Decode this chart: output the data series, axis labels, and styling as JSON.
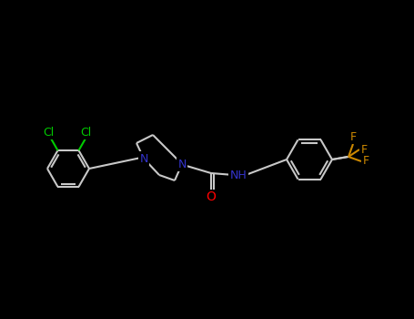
{
  "background": "#000000",
  "bond_color": "#c8c8c8",
  "colors": {
    "O": "#ff0000",
    "N": "#3333cc",
    "Cl": "#00cc00",
    "F": "#cc8800",
    "C": "#c8c8c8"
  },
  "lw": 1.5,
  "lw_double": 1.5
}
